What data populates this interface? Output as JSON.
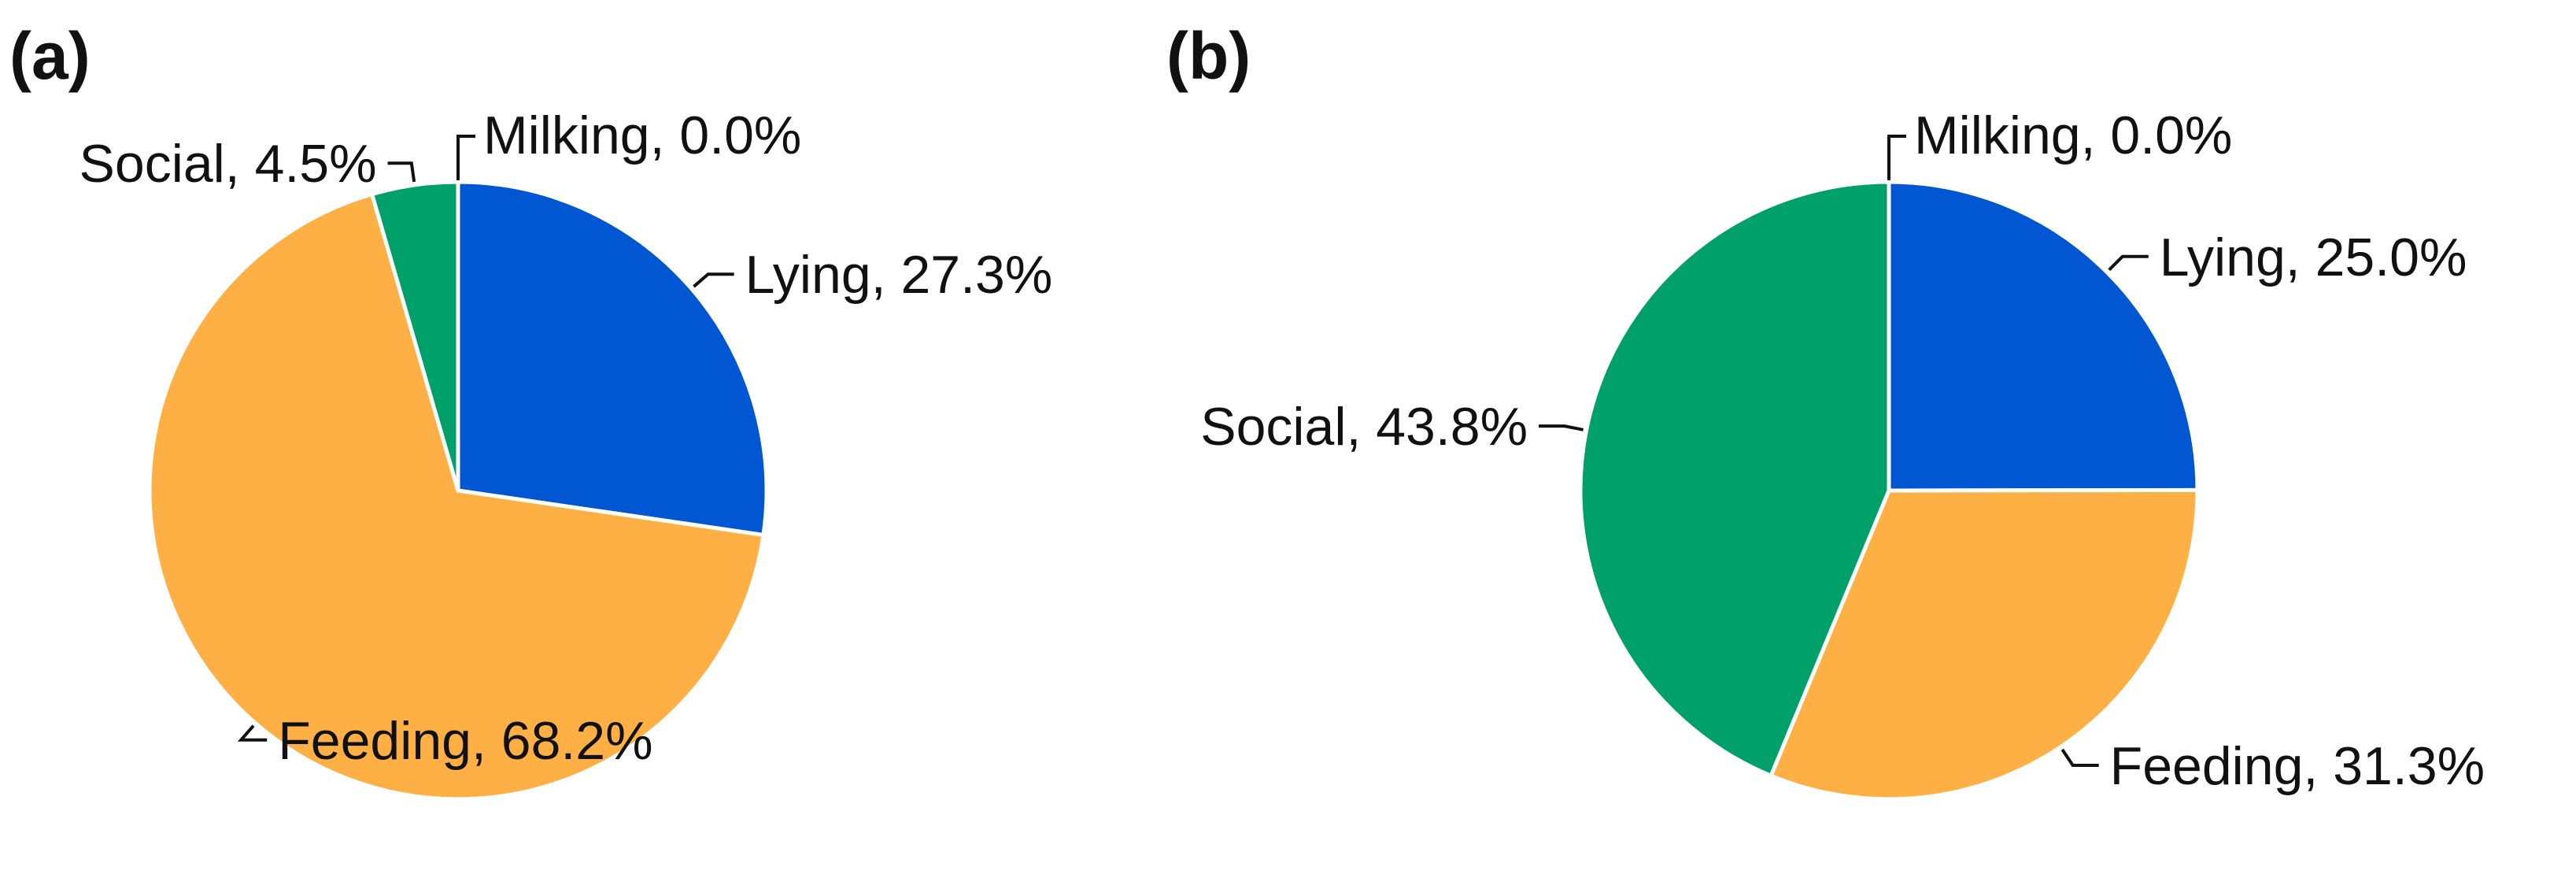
{
  "chart_data": [
    {
      "type": "pie",
      "panel_label": "(a)",
      "title": "",
      "slices": [
        {
          "label": "Lying",
          "value": 27.3,
          "value_text": "27.3%",
          "color": "#0057D1"
        },
        {
          "label": "Feeding",
          "value": 68.2,
          "value_text": "68.2%",
          "color": "#FFB045"
        },
        {
          "label": "Social",
          "value": 4.5,
          "value_text": "4.5%",
          "color": "#00A06B"
        },
        {
          "label": "Milking",
          "value": 0.0,
          "value_text": "0.0%",
          "color": "#E5E5E5"
        }
      ],
      "start": "12 o'clock",
      "direction": "clockwise",
      "legend": "none"
    },
    {
      "type": "pie",
      "panel_label": "(b)",
      "title": "",
      "slices": [
        {
          "label": "Lying",
          "value": 25.0,
          "value_text": "25.0%",
          "color": "#0057D1"
        },
        {
          "label": "Feeding",
          "value": 31.3,
          "value_text": "31.3%",
          "color": "#FFB045"
        },
        {
          "label": "Social",
          "value": 43.8,
          "value_text": "43.8%",
          "color": "#00A06B"
        },
        {
          "label": "Milking",
          "value": 0.0,
          "value_text": "0.0%",
          "color": "#E5E5E5"
        }
      ],
      "start": "12 o'clock",
      "direction": "clockwise",
      "legend": "none"
    }
  ]
}
